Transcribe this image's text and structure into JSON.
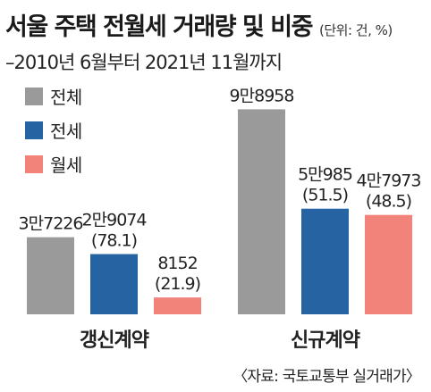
{
  "title": "서울 주택 전월세 거래량 및 비중",
  "unit_note": "(단위: 건, %)",
  "subtitle": "–2010년 6월부터 2021년 11월까지",
  "source": "〈자료: 국토교통부 실거래가〉",
  "colors": {
    "total": "#9a9a9a",
    "jeonse": "#2563a3",
    "wolse": "#f2837a"
  },
  "chart_data": {
    "type": "bar",
    "categories": [
      "갱신계약",
      "신규계약"
    ],
    "series": [
      {
        "name": "전체",
        "values": [
          37226,
          98958
        ],
        "labels": [
          "3만7226",
          "9만8958"
        ],
        "shares": [
          null,
          null
        ]
      },
      {
        "name": "전세",
        "values": [
          29074,
          50985
        ],
        "labels": [
          "2만9074",
          "5만985"
        ],
        "shares": [
          "(78.1)",
          "(51.5)"
        ]
      },
      {
        "name": "월세",
        "values": [
          8152,
          47973
        ],
        "labels": [
          "8152",
          "4만7973"
        ],
        "shares": [
          "(21.9)",
          "(48.5)"
        ]
      }
    ],
    "legend_position": "top-left",
    "grid": false,
    "ylim": [
      0,
      100000
    ]
  }
}
